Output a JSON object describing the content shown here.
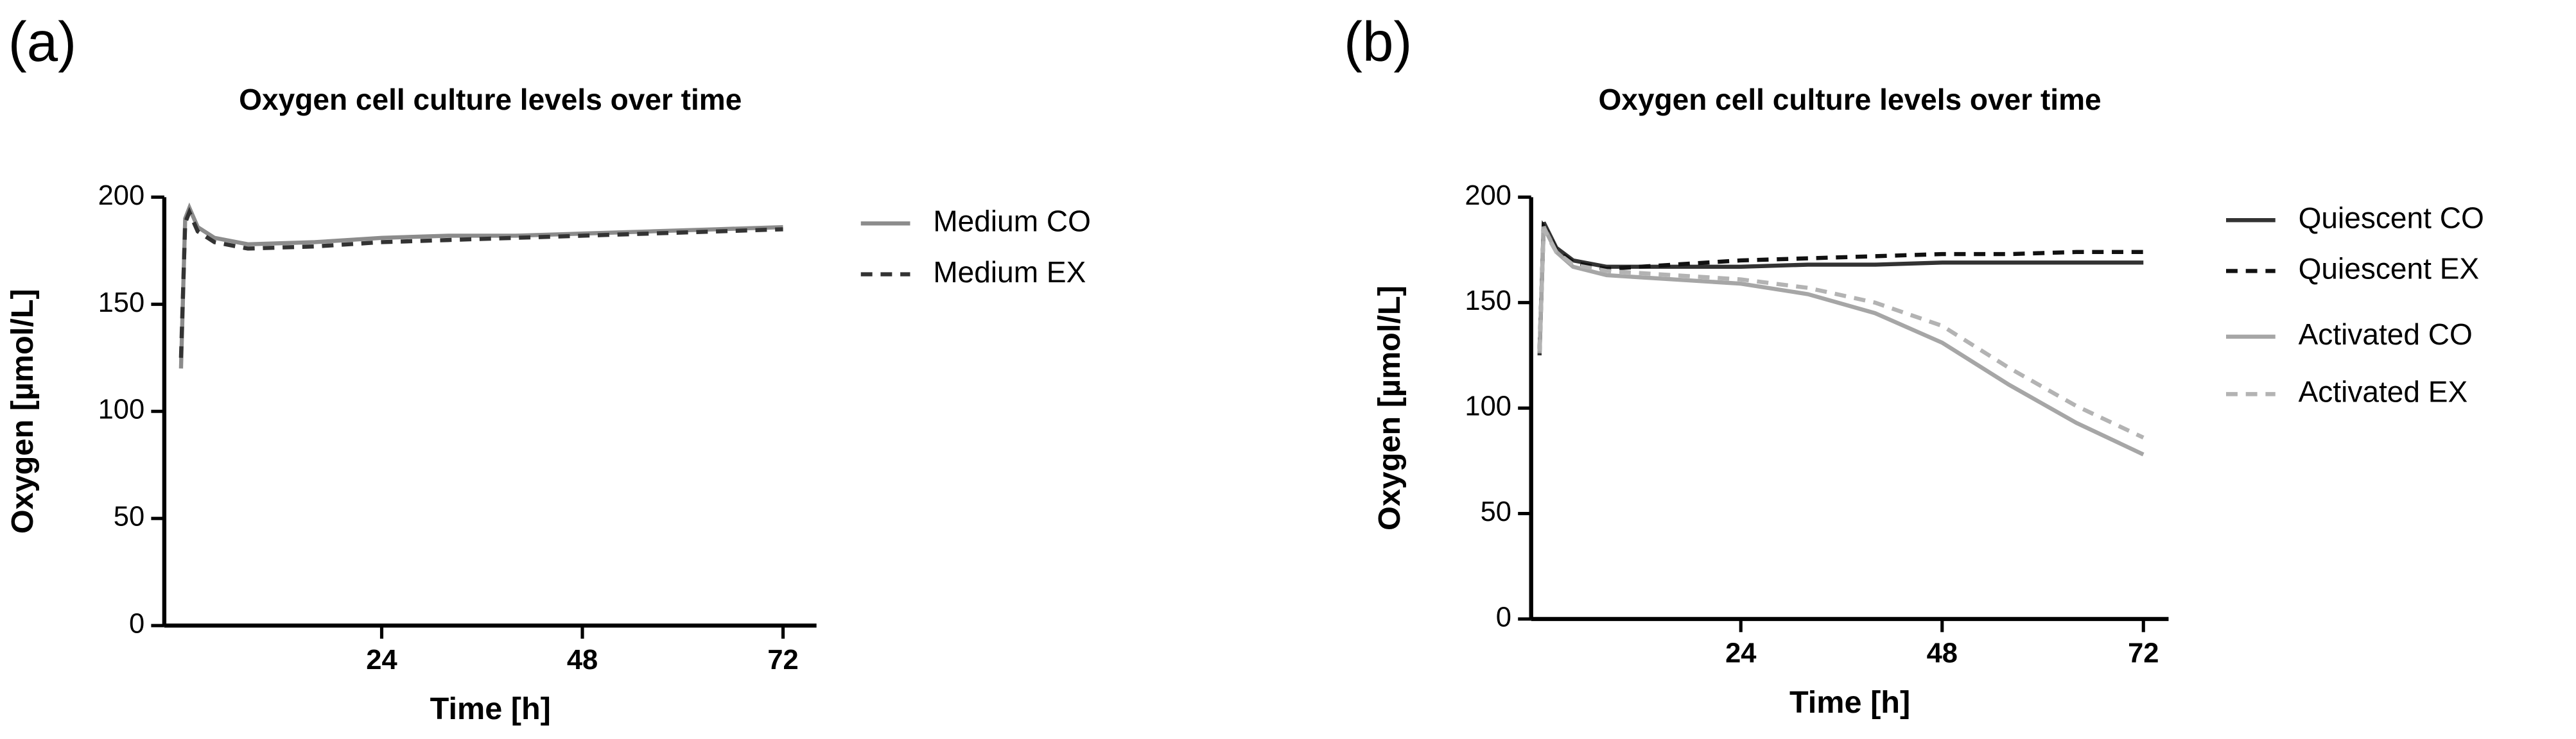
{
  "chart_data": [
    {
      "type": "line",
      "panel_label": "(a)",
      "title": "Oxygen cell culture levels over time",
      "x_label": "Time [h]",
      "y_label": "Oxygen [µmol/L]",
      "xlim": [
        -2,
        76
      ],
      "ylim": [
        0,
        200
      ],
      "xticks": [
        24,
        48,
        72
      ],
      "yticks": [
        0,
        50,
        100,
        150,
        200
      ],
      "x": [
        0,
        0.5,
        1,
        2,
        4,
        8,
        16,
        24,
        32,
        40,
        48,
        56,
        64,
        72
      ],
      "series": [
        {
          "name": "Medium CO",
          "color": "#8c8c8c",
          "dashed": false,
          "values": [
            120,
            190,
            195,
            186,
            181,
            178,
            179,
            181,
            182,
            182,
            183,
            184,
            185,
            186
          ]
        },
        {
          "name": "Medium EX",
          "color": "#333333",
          "dashed": true,
          "values": [
            125,
            188,
            193,
            184,
            179,
            176,
            177,
            179,
            180,
            181,
            182,
            183,
            184,
            185
          ]
        }
      ]
    },
    {
      "type": "line",
      "panel_label": "(b)",
      "title": "Oxygen cell culture levels over time",
      "x_label": "Time [h]",
      "y_label": "Oxygen [µmol/L]",
      "xlim": [
        -1,
        75
      ],
      "ylim": [
        0,
        200
      ],
      "xticks": [
        24,
        48,
        72
      ],
      "yticks": [
        0,
        50,
        100,
        150,
        200
      ],
      "x": [
        0,
        0.5,
        1,
        2,
        4,
        8,
        16,
        24,
        32,
        40,
        48,
        56,
        64,
        72
      ],
      "series": [
        {
          "name": "Quiescent CO",
          "color": "#333333",
          "dashed": false,
          "values": [
            125,
            188,
            184,
            176,
            170,
            167,
            167,
            167,
            168,
            168,
            169,
            169,
            169,
            169
          ]
        },
        {
          "name": "Quiescent EX",
          "color": "#111111",
          "dashed": true,
          "values": [
            128,
            186,
            183,
            175,
            169,
            166,
            168,
            170,
            171,
            172,
            173,
            173,
            174,
            174
          ]
        },
        {
          "name": "Activated CO",
          "color": "#a6a6a6",
          "dashed": false,
          "values": [
            126,
            186,
            182,
            174,
            167,
            163,
            161,
            159,
            154,
            145,
            131,
            111,
            93,
            78
          ]
        },
        {
          "name": "Activated EX",
          "color": "#b3b3b3",
          "dashed": true,
          "values": [
            127,
            185,
            181,
            174,
            168,
            165,
            163,
            161,
            157,
            150,
            139,
            119,
            101,
            86
          ]
        }
      ]
    }
  ]
}
